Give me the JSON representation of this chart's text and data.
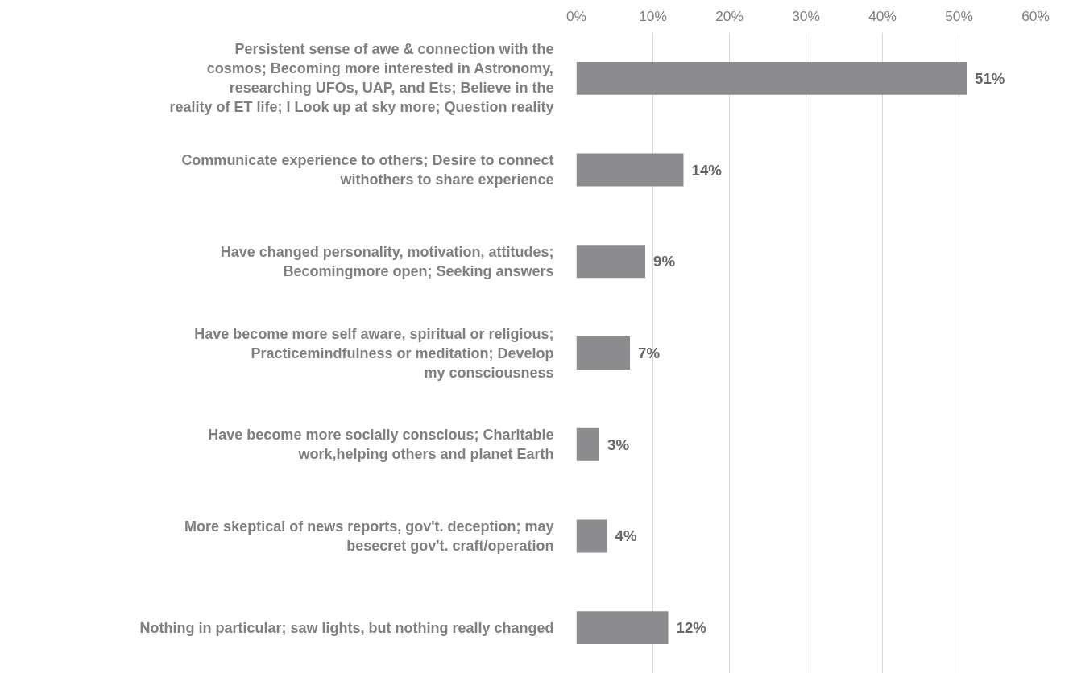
{
  "chart_data": {
    "type": "bar",
    "orientation": "horizontal",
    "categories": [
      "Persistent sense of awe & connection with the\ncosmos; Becoming more interested in Astronomy,\nresearching UFOs, UAP, and Ets; Believe in the\nreality of ET life; I Look up at sky more; Question reality",
      "Communicate experience to others; Desire to connect\nwithothers to share experience",
      "Have changed personality, motivation, attitudes;\nBecomingmore open; Seeking answers",
      "Have become more self aware, spiritual or religious;\nPracticemindfulness or meditation; Develop\nmy consciousness",
      "Have become more socially conscious; Charitable\nwork,helping others and planet Earth",
      "More skeptical of news reports, gov't. deception; may\nbesecret gov't. craft/operation",
      "Nothing in particular; saw lights, but nothing really changed"
    ],
    "values": [
      51,
      14,
      9,
      7,
      3,
      4,
      12
    ],
    "value_labels": [
      "51%",
      "14%",
      "9%",
      "7%",
      "3%",
      "4%",
      "12%"
    ],
    "color": "#8c8c8e",
    "xlim": [
      0,
      60
    ],
    "xticks": [
      {
        "value": 0,
        "label": "0%"
      },
      {
        "value": 10,
        "label": "10%"
      },
      {
        "value": 20,
        "label": "20%"
      },
      {
        "value": 30,
        "label": "30%"
      },
      {
        "value": 40,
        "label": "40%"
      },
      {
        "value": 50,
        "label": "50%"
      },
      {
        "value": 60,
        "label": "60%"
      }
    ],
    "grid": "x"
  }
}
